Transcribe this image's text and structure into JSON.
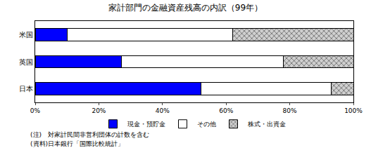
{
  "chart_data": {
    "type": "bar",
    "title": "家計部門の金融資産残高の内訳（99年）",
    "orientation": "horizontal",
    "stacked": true,
    "grid": false,
    "legend": "bottom",
    "categories": [
      "米国",
      "英国",
      "日本"
    ],
    "series": [
      {
        "name": "現金・預貯金",
        "color": "#0000ff",
        "values": [
          10,
          27,
          52
        ]
      },
      {
        "name": "その他",
        "color": "#ffffff",
        "values": [
          52,
          51,
          41
        ]
      },
      {
        "name": "株式・出資金",
        "color": "#d0d0d0",
        "marker": "crosshatch",
        "values": [
          38,
          22,
          7
        ]
      }
    ],
    "xlim": [
      0,
      100
    ],
    "xticks": [
      {
        "value": 0,
        "label": "0%"
      },
      {
        "value": 20,
        "label": "20%"
      },
      {
        "value": 40,
        "label": "40%"
      },
      {
        "value": 60,
        "label": "60%"
      },
      {
        "value": 80,
        "label": "80%"
      },
      {
        "value": 100,
        "label": "100%"
      }
    ],
    "notes": [
      "(注)　対家計民間非営利団体の計数を含む",
      "(資料)日本銀行「国際比較統計」"
    ]
  }
}
